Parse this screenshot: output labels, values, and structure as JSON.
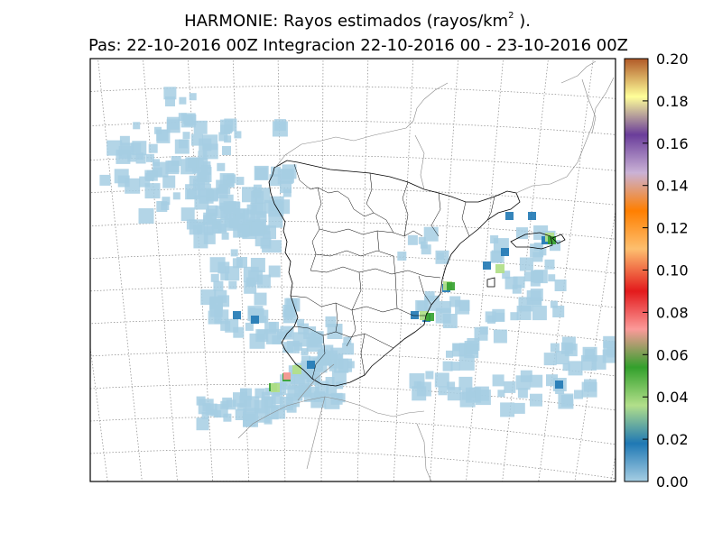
{
  "title": {
    "line1_prefix": "HARMONIE: Rayos estimados  (rayos/km",
    "line1_sup": "2",
    "line1_suffix": " ).",
    "line2": "Pas: 22-10-2016 00Z Integracion 22-10-2016 00 - 23-10-2016 00Z"
  },
  "colorbar": {
    "ticks": [
      "0.00",
      "0.02",
      "0.04",
      "0.06",
      "0.08",
      "0.10",
      "0.12",
      "0.14",
      "0.16",
      "0.18",
      "0.20"
    ],
    "min": 0.0,
    "max": 0.2,
    "colors": [
      "#a6cee3",
      "#1f78b4",
      "#b2df8a",
      "#33a02c",
      "#fb9a99",
      "#e31a1c",
      "#fdbf6f",
      "#ff7f00",
      "#cab2d6",
      "#6a3d9a",
      "#ffff99",
      "#b15928"
    ]
  }
}
